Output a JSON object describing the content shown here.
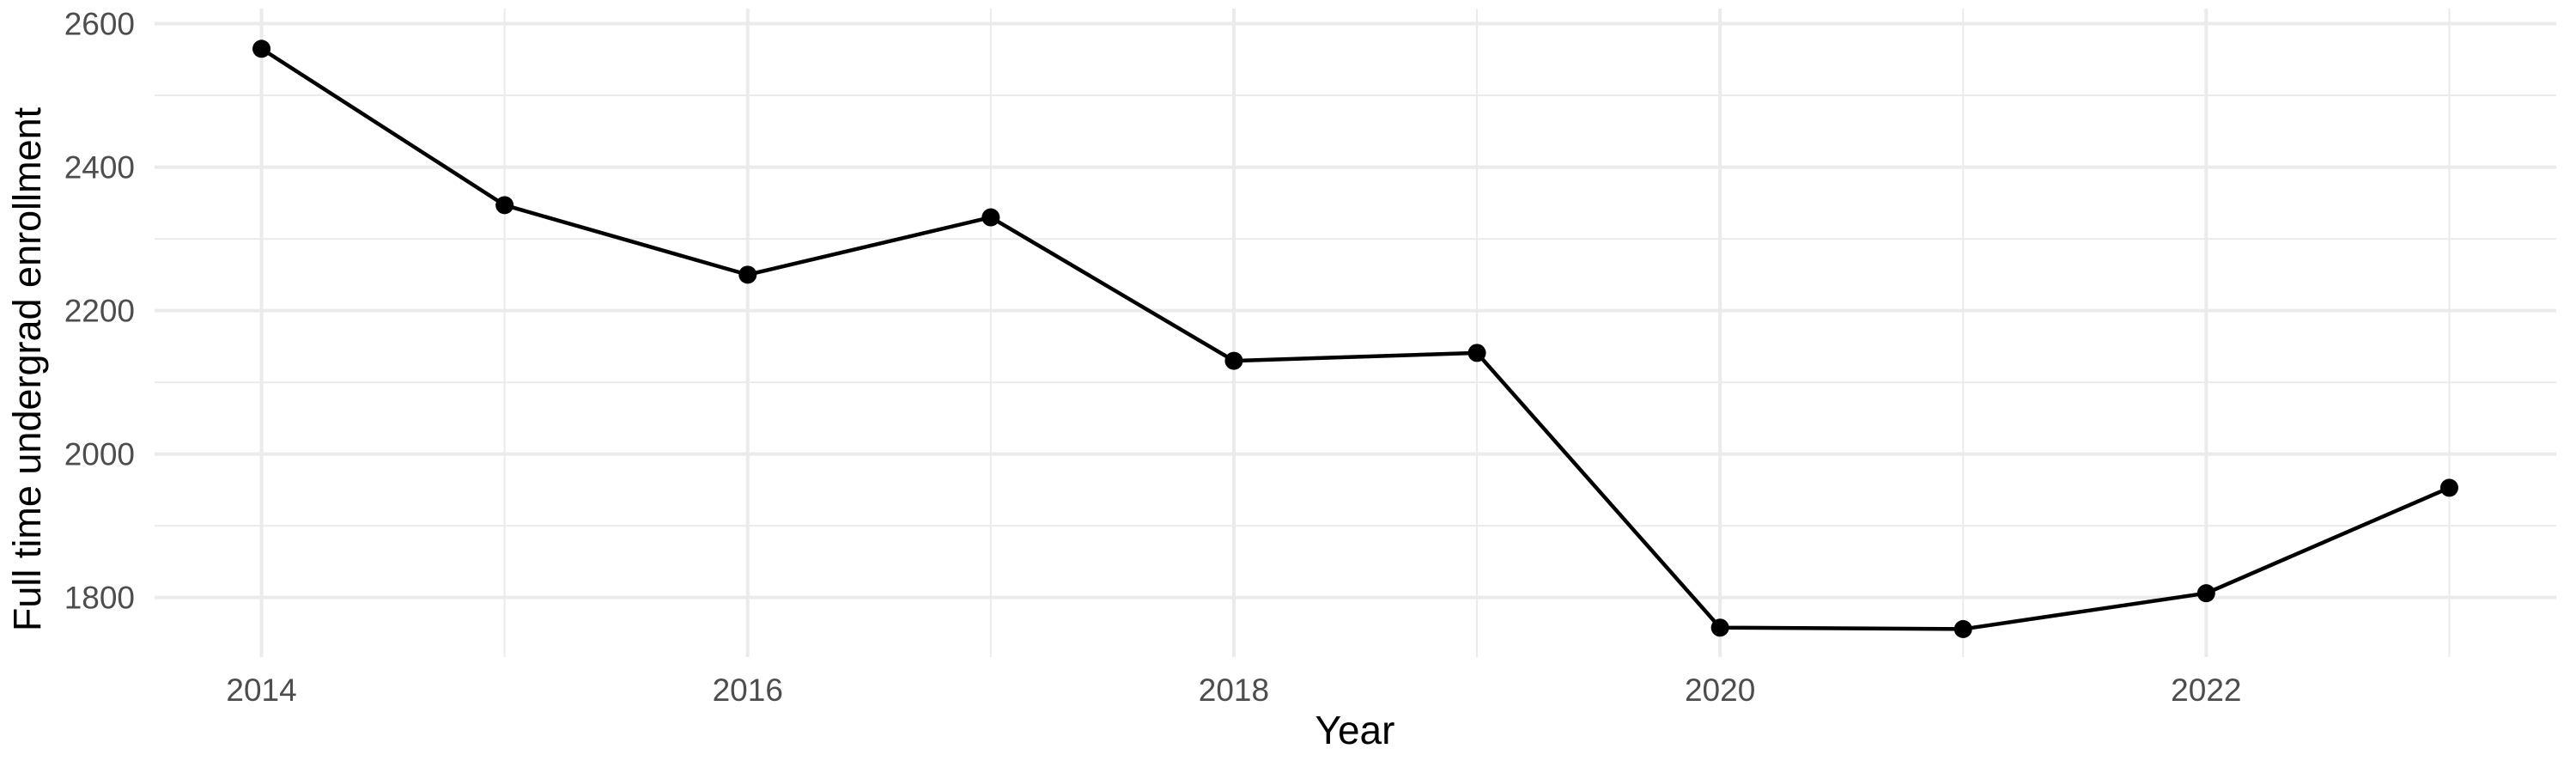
{
  "chart_data": {
    "type": "line",
    "title": "",
    "xlabel": "Year",
    "ylabel": "Full time undergrad enrollment",
    "series": [
      {
        "name": "Full time undergrad enrollment",
        "x": [
          2014,
          2015,
          2016,
          2017,
          2018,
          2019,
          2020,
          2021,
          2022,
          2023
        ],
        "values": [
          2565,
          2347,
          2250,
          2330,
          2130,
          2141,
          1758,
          1756,
          1806,
          1953
        ]
      }
    ],
    "xticks": {
      "values": [
        2014,
        2016,
        2018,
        2020,
        2022
      ],
      "labels": [
        "2014",
        "2016",
        "2018",
        "2020",
        "2022"
      ]
    },
    "yticks": {
      "values": [
        1800,
        2000,
        2200,
        2400,
        2600
      ],
      "labels": [
        "1800",
        "2000",
        "2200",
        "2400",
        "2600"
      ]
    },
    "xticks_minor": [
      2015,
      2017,
      2019,
      2021,
      2023
    ],
    "yticks_minor": [
      1900,
      2100,
      2300,
      2500
    ],
    "xlim": [
      2013.56,
      2023.44
    ],
    "ylim": [
      1717,
      2621
    ],
    "grid": "on",
    "legend": "none",
    "colors": {
      "line": "#000000",
      "point": "#000000",
      "grid_major": "#ebebeb",
      "grid_minor": "#ebebeb",
      "tick_label": "#4d4d4d",
      "axis_title": "#000000",
      "background": "#ffffff"
    }
  }
}
